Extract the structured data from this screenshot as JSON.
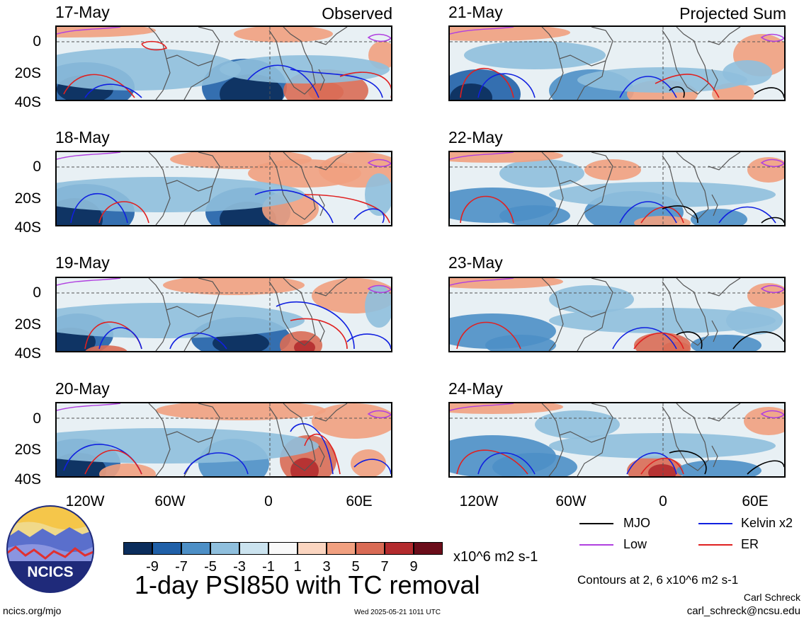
{
  "headers": {
    "left": "Observed",
    "right": "Projected Sum"
  },
  "panels_left": [
    {
      "date": "17-May",
      "id": "p17"
    },
    {
      "date": "18-May",
      "id": "p18"
    },
    {
      "date": "19-May",
      "id": "p19"
    },
    {
      "date": "20-May",
      "id": "p20"
    }
  ],
  "panels_right": [
    {
      "date": "21-May",
      "id": "p21"
    },
    {
      "date": "22-May",
      "id": "p22"
    },
    {
      "date": "23-May",
      "id": "p23"
    },
    {
      "date": "24-May",
      "id": "p24"
    }
  ],
  "lat_labels": [
    "0",
    "20S",
    "40S"
  ],
  "lon_labels": [
    "120W",
    "60W",
    "0",
    "60E"
  ],
  "colorbar": {
    "colors": [
      "#0b2d5c",
      "#2060a8",
      "#4d8fc6",
      "#8fbfdd",
      "#cbe3ef",
      "#f9f9f9",
      "#fbd5c0",
      "#f1a080",
      "#d96b55",
      "#b32b2e",
      "#6b0d1a"
    ],
    "labels": [
      "-9",
      "-7",
      "-5",
      "-3",
      "-1",
      "1",
      "3",
      "5",
      "7",
      "9"
    ],
    "units": "x10^6 m2 s-1"
  },
  "title": "1-day PSI850 with TC removal",
  "legend": [
    {
      "label": "MJO",
      "color": "#000000"
    },
    {
      "label": "Kelvin x2",
      "color": "#1020e0"
    },
    {
      "label": "Low",
      "color": "#b040e0"
    },
    {
      "label": "ER",
      "color": "#e02020"
    }
  ],
  "contours_note": "Contours at 2, 6 x10^6 m2 s-1",
  "author": "Carl Schreck",
  "email": "carl_schreck@ncsu.edu",
  "url": "ncics.org/mjo",
  "timestamp": "Wed 2025-05-21 1011 UTC",
  "logo_text": "NCICS"
}
